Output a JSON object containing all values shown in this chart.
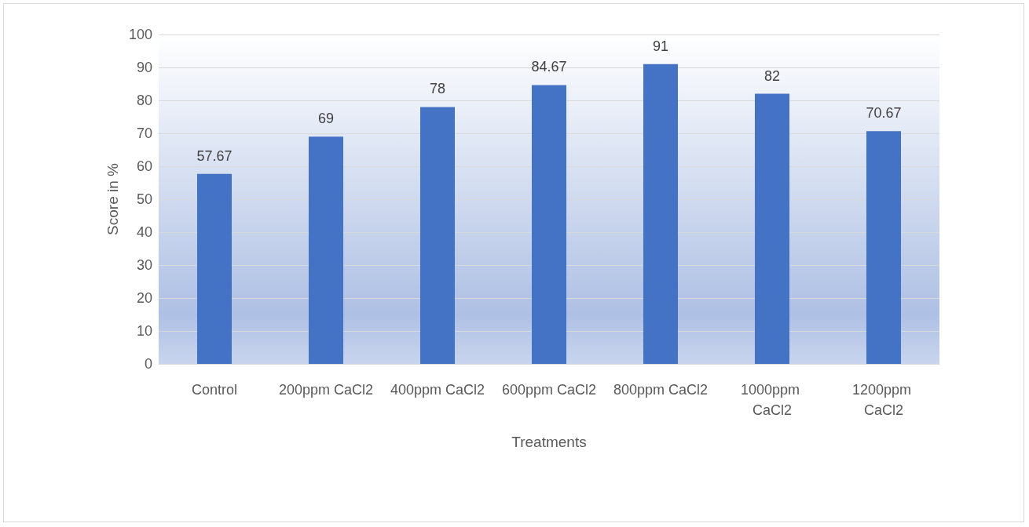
{
  "chart_data": {
    "type": "bar",
    "xlabel": "Treatments",
    "ylabel": "Score in %",
    "categories": [
      "Control",
      "200ppm CaCl2",
      "400ppm CaCl2",
      "600ppm CaCl2",
      "800ppm CaCl2",
      "1000ppm CaCl2",
      "1200ppm CaCl2"
    ],
    "values": [
      57.67,
      69,
      78,
      84.67,
      91,
      82,
      70.67
    ],
    "color": "#4472c4",
    "ylim": [
      0,
      100
    ],
    "yticks": [
      0,
      10,
      20,
      30,
      40,
      50,
      60,
      70,
      80,
      90,
      100
    ],
    "grid": "y",
    "data_labels": true
  }
}
